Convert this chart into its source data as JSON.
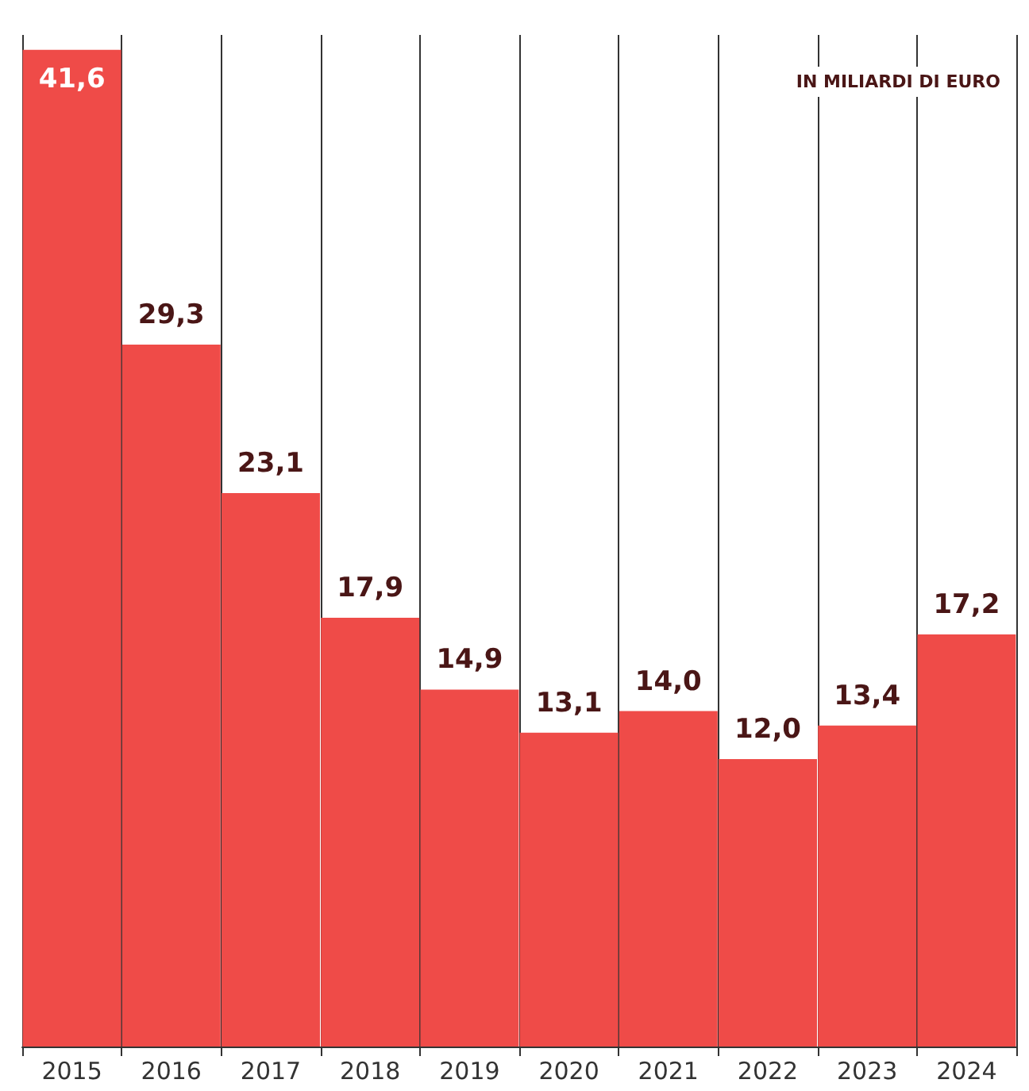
{
  "chart_data": {
    "type": "bar",
    "subtitle": "IN MILIARDI DI EURO",
    "categories": [
      "2015",
      "2016",
      "2017",
      "2018",
      "2019",
      "2020",
      "2021",
      "2022",
      "2023",
      "2024"
    ],
    "values": [
      41.6,
      29.3,
      23.1,
      17.9,
      14.9,
      13.1,
      14.0,
      12.0,
      13.4,
      17.2
    ],
    "value_labels": [
      "41,6",
      "29,3",
      "23,1",
      "17,9",
      "14,9",
      "13,1",
      "14,0",
      "12,0",
      "13,4",
      "17,2"
    ],
    "color": "#ef4b48",
    "grid": "x"
  }
}
